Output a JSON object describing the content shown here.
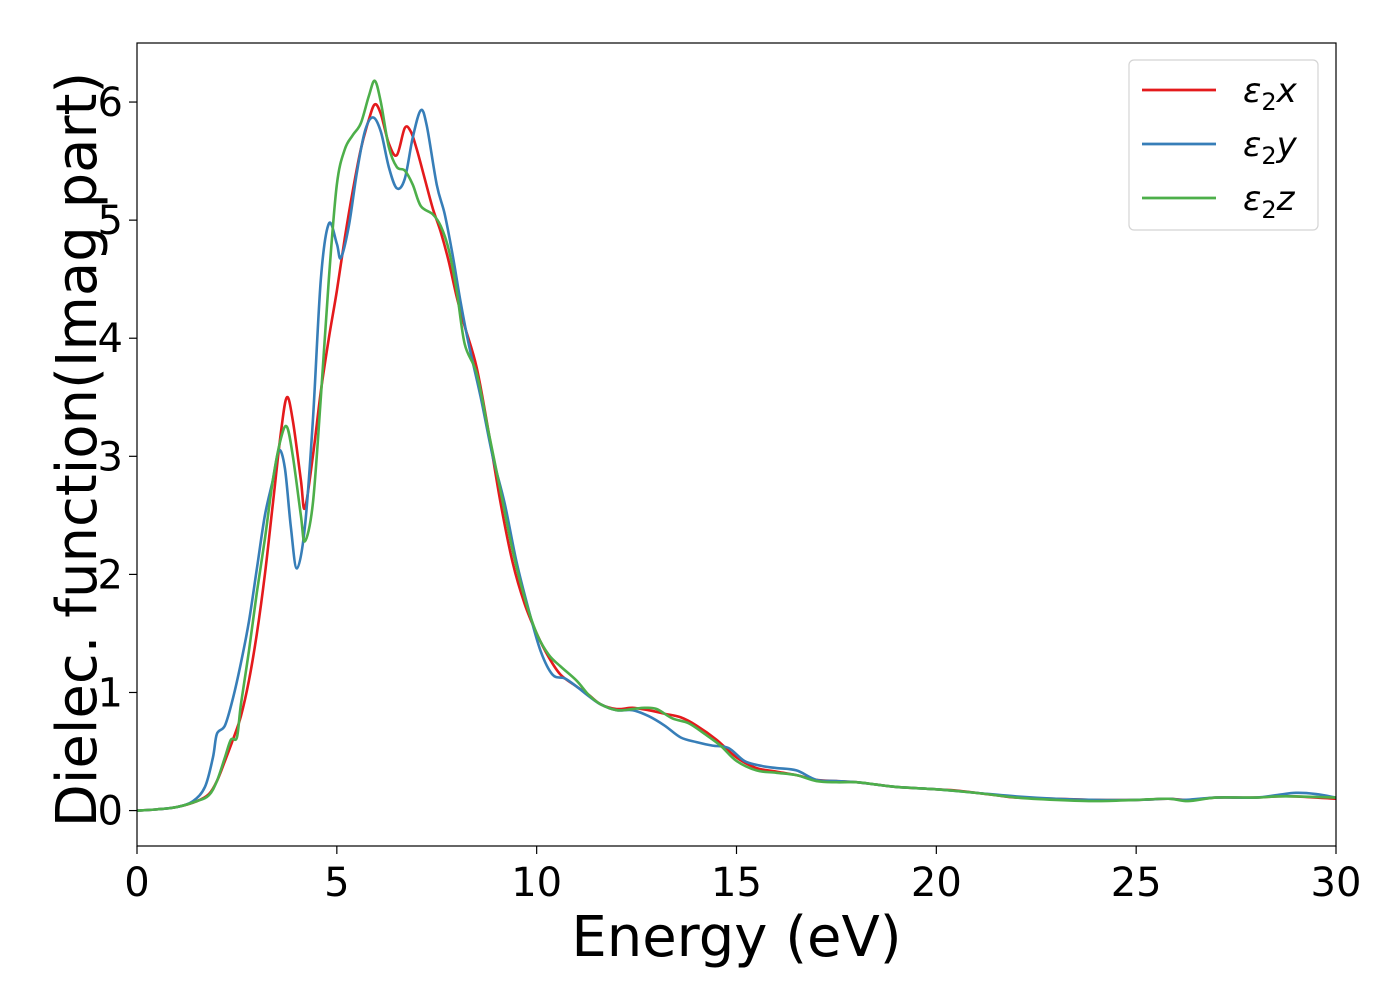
{
  "chart_data": {
    "type": "line",
    "title": "",
    "xlabel": "Energy (eV)",
    "ylabel": "Dielec. function(Imag part)",
    "xlim": [
      0,
      30
    ],
    "ylim": [
      -0.3,
      6.5
    ],
    "xticks": [
      "0",
      "5",
      "10",
      "15",
      "20",
      "25",
      "30"
    ],
    "yticks": [
      "0",
      "1",
      "2",
      "3",
      "4",
      "5",
      "6"
    ],
    "grid": false,
    "legend_position": "top-right",
    "series": [
      {
        "name": "ε₂x",
        "legend": {
          "base": "ε",
          "sub": "2",
          "suffix": "x"
        },
        "color": "#e41a1c",
        "points": [
          [
            0,
            0
          ],
          [
            0.5,
            0.01
          ],
          [
            1.0,
            0.03
          ],
          [
            1.5,
            0.08
          ],
          [
            1.8,
            0.14
          ],
          [
            2.0,
            0.25
          ],
          [
            2.2,
            0.42
          ],
          [
            2.4,
            0.6
          ],
          [
            2.6,
            0.8
          ],
          [
            2.8,
            1.1
          ],
          [
            3.0,
            1.5
          ],
          [
            3.2,
            2.0
          ],
          [
            3.4,
            2.6
          ],
          [
            3.6,
            3.2
          ],
          [
            3.75,
            3.5
          ],
          [
            3.9,
            3.3
          ],
          [
            4.1,
            2.8
          ],
          [
            4.2,
            2.56
          ],
          [
            4.4,
            3.0
          ],
          [
            4.6,
            3.55
          ],
          [
            4.8,
            4.0
          ],
          [
            5.0,
            4.4
          ],
          [
            5.2,
            4.85
          ],
          [
            5.4,
            5.25
          ],
          [
            5.6,
            5.6
          ],
          [
            5.8,
            5.85
          ],
          [
            5.95,
            5.98
          ],
          [
            6.1,
            5.9
          ],
          [
            6.3,
            5.65
          ],
          [
            6.5,
            5.55
          ],
          [
            6.7,
            5.78
          ],
          [
            6.85,
            5.75
          ],
          [
            7.0,
            5.6
          ],
          [
            7.2,
            5.35
          ],
          [
            7.4,
            5.1
          ],
          [
            7.6,
            4.9
          ],
          [
            7.8,
            4.65
          ],
          [
            8.0,
            4.35
          ],
          [
            8.2,
            4.1
          ],
          [
            8.5,
            3.75
          ],
          [
            8.8,
            3.2
          ],
          [
            9.1,
            2.6
          ],
          [
            9.4,
            2.1
          ],
          [
            9.7,
            1.75
          ],
          [
            10.0,
            1.5
          ],
          [
            10.3,
            1.3
          ],
          [
            10.6,
            1.15
          ],
          [
            11.0,
            1.05
          ],
          [
            11.3,
            0.98
          ],
          [
            11.6,
            0.9
          ],
          [
            12.0,
            0.86
          ],
          [
            12.4,
            0.87
          ],
          [
            12.8,
            0.85
          ],
          [
            13.2,
            0.82
          ],
          [
            13.6,
            0.79
          ],
          [
            14.0,
            0.72
          ],
          [
            14.5,
            0.6
          ],
          [
            15.0,
            0.45
          ],
          [
            15.5,
            0.36
          ],
          [
            16.0,
            0.33
          ],
          [
            16.5,
            0.3
          ],
          [
            17.0,
            0.26
          ],
          [
            17.5,
            0.25
          ],
          [
            18.0,
            0.24
          ],
          [
            18.5,
            0.22
          ],
          [
            19.0,
            0.2
          ],
          [
            19.5,
            0.19
          ],
          [
            20.0,
            0.18
          ],
          [
            20.5,
            0.17
          ],
          [
            21.0,
            0.15
          ],
          [
            21.5,
            0.13
          ],
          [
            22.0,
            0.11
          ],
          [
            23.0,
            0.1
          ],
          [
            24.0,
            0.09
          ],
          [
            25.0,
            0.09
          ],
          [
            25.8,
            0.1
          ],
          [
            26.3,
            0.09
          ],
          [
            27.0,
            0.11
          ],
          [
            27.5,
            0.11
          ],
          [
            28.0,
            0.11
          ],
          [
            28.5,
            0.12
          ],
          [
            29.0,
            0.12
          ],
          [
            30.0,
            0.1
          ]
        ]
      },
      {
        "name": "ε₂y",
        "legend": {
          "base": "ε",
          "sub": "2",
          "suffix": "y"
        },
        "color": "#377eb8",
        "points": [
          [
            0,
            0
          ],
          [
            0.5,
            0.01
          ],
          [
            1.0,
            0.03
          ],
          [
            1.4,
            0.08
          ],
          [
            1.7,
            0.2
          ],
          [
            1.9,
            0.45
          ],
          [
            2.0,
            0.65
          ],
          [
            2.2,
            0.72
          ],
          [
            2.4,
            0.95
          ],
          [
            2.6,
            1.25
          ],
          [
            2.8,
            1.6
          ],
          [
            3.0,
            2.05
          ],
          [
            3.2,
            2.5
          ],
          [
            3.4,
            2.8
          ],
          [
            3.55,
            3.05
          ],
          [
            3.7,
            2.9
          ],
          [
            3.85,
            2.4
          ],
          [
            4.0,
            2.05
          ],
          [
            4.2,
            2.4
          ],
          [
            4.4,
            3.3
          ],
          [
            4.6,
            4.5
          ],
          [
            4.8,
            4.97
          ],
          [
            5.0,
            4.8
          ],
          [
            5.1,
            4.68
          ],
          [
            5.3,
            4.95
          ],
          [
            5.5,
            5.4
          ],
          [
            5.7,
            5.75
          ],
          [
            5.9,
            5.87
          ],
          [
            6.1,
            5.75
          ],
          [
            6.3,
            5.45
          ],
          [
            6.5,
            5.27
          ],
          [
            6.7,
            5.35
          ],
          [
            6.9,
            5.7
          ],
          [
            7.1,
            5.93
          ],
          [
            7.25,
            5.8
          ],
          [
            7.5,
            5.3
          ],
          [
            7.7,
            5.05
          ],
          [
            7.9,
            4.7
          ],
          [
            8.1,
            4.3
          ],
          [
            8.3,
            3.95
          ],
          [
            8.6,
            3.5
          ],
          [
            8.9,
            3.0
          ],
          [
            9.2,
            2.6
          ],
          [
            9.5,
            2.1
          ],
          [
            9.8,
            1.7
          ],
          [
            10.1,
            1.35
          ],
          [
            10.4,
            1.15
          ],
          [
            10.7,
            1.12
          ],
          [
            11.0,
            1.05
          ],
          [
            11.3,
            0.97
          ],
          [
            11.6,
            0.9
          ],
          [
            12.0,
            0.85
          ],
          [
            12.4,
            0.85
          ],
          [
            12.8,
            0.8
          ],
          [
            13.2,
            0.72
          ],
          [
            13.6,
            0.62
          ],
          [
            14.0,
            0.58
          ],
          [
            14.4,
            0.55
          ],
          [
            14.8,
            0.53
          ],
          [
            15.2,
            0.42
          ],
          [
            15.6,
            0.38
          ],
          [
            16.0,
            0.36
          ],
          [
            16.5,
            0.34
          ],
          [
            17.0,
            0.26
          ],
          [
            17.5,
            0.25
          ],
          [
            18.0,
            0.24
          ],
          [
            18.5,
            0.22
          ],
          [
            19.0,
            0.2
          ],
          [
            20.0,
            0.18
          ],
          [
            21.0,
            0.15
          ],
          [
            22.0,
            0.12
          ],
          [
            23.0,
            0.1
          ],
          [
            24.0,
            0.09
          ],
          [
            25.0,
            0.09
          ],
          [
            25.8,
            0.1
          ],
          [
            26.2,
            0.09
          ],
          [
            27.0,
            0.11
          ],
          [
            28.0,
            0.11
          ],
          [
            28.5,
            0.13
          ],
          [
            29.0,
            0.15
          ],
          [
            29.5,
            0.14
          ],
          [
            30.0,
            0.11
          ]
        ]
      },
      {
        "name": "ε₂z",
        "legend": {
          "base": "ε",
          "sub": "2",
          "suffix": "z"
        },
        "color": "#4daf4a",
        "points": [
          [
            0,
            0
          ],
          [
            0.5,
            0.01
          ],
          [
            1.0,
            0.03
          ],
          [
            1.5,
            0.08
          ],
          [
            1.8,
            0.13
          ],
          [
            2.0,
            0.25
          ],
          [
            2.2,
            0.45
          ],
          [
            2.35,
            0.6
          ],
          [
            2.5,
            0.62
          ],
          [
            2.6,
            0.9
          ],
          [
            2.8,
            1.35
          ],
          [
            3.0,
            1.85
          ],
          [
            3.2,
            2.3
          ],
          [
            3.4,
            2.8
          ],
          [
            3.6,
            3.15
          ],
          [
            3.75,
            3.25
          ],
          [
            3.9,
            3.0
          ],
          [
            4.1,
            2.5
          ],
          [
            4.2,
            2.28
          ],
          [
            4.4,
            2.6
          ],
          [
            4.6,
            3.5
          ],
          [
            4.8,
            4.5
          ],
          [
            5.0,
            5.3
          ],
          [
            5.2,
            5.6
          ],
          [
            5.4,
            5.72
          ],
          [
            5.6,
            5.82
          ],
          [
            5.8,
            6.05
          ],
          [
            5.95,
            6.18
          ],
          [
            6.1,
            6.0
          ],
          [
            6.3,
            5.62
          ],
          [
            6.5,
            5.45
          ],
          [
            6.7,
            5.42
          ],
          [
            6.9,
            5.3
          ],
          [
            7.1,
            5.12
          ],
          [
            7.4,
            5.05
          ],
          [
            7.6,
            4.95
          ],
          [
            7.8,
            4.75
          ],
          [
            8.0,
            4.4
          ],
          [
            8.2,
            3.95
          ],
          [
            8.5,
            3.7
          ],
          [
            8.8,
            3.2
          ],
          [
            9.1,
            2.7
          ],
          [
            9.4,
            2.2
          ],
          [
            9.7,
            1.8
          ],
          [
            10.0,
            1.5
          ],
          [
            10.3,
            1.32
          ],
          [
            10.6,
            1.22
          ],
          [
            11.0,
            1.1
          ],
          [
            11.3,
            0.98
          ],
          [
            11.6,
            0.9
          ],
          [
            12.0,
            0.85
          ],
          [
            12.4,
            0.86
          ],
          [
            12.7,
            0.87
          ],
          [
            13.0,
            0.86
          ],
          [
            13.4,
            0.78
          ],
          [
            13.8,
            0.74
          ],
          [
            14.2,
            0.65
          ],
          [
            14.6,
            0.55
          ],
          [
            15.0,
            0.42
          ],
          [
            15.5,
            0.34
          ],
          [
            16.0,
            0.32
          ],
          [
            16.5,
            0.3
          ],
          [
            17.0,
            0.25
          ],
          [
            17.5,
            0.24
          ],
          [
            18.0,
            0.24
          ],
          [
            18.5,
            0.22
          ],
          [
            19.0,
            0.2
          ],
          [
            20.0,
            0.18
          ],
          [
            21.0,
            0.15
          ],
          [
            22.0,
            0.11
          ],
          [
            23.0,
            0.09
          ],
          [
            24.0,
            0.08
          ],
          [
            25.0,
            0.09
          ],
          [
            25.8,
            0.1
          ],
          [
            26.3,
            0.08
          ],
          [
            27.0,
            0.11
          ],
          [
            28.0,
            0.11
          ],
          [
            28.5,
            0.12
          ],
          [
            29.0,
            0.12
          ],
          [
            30.0,
            0.11
          ]
        ]
      }
    ]
  }
}
